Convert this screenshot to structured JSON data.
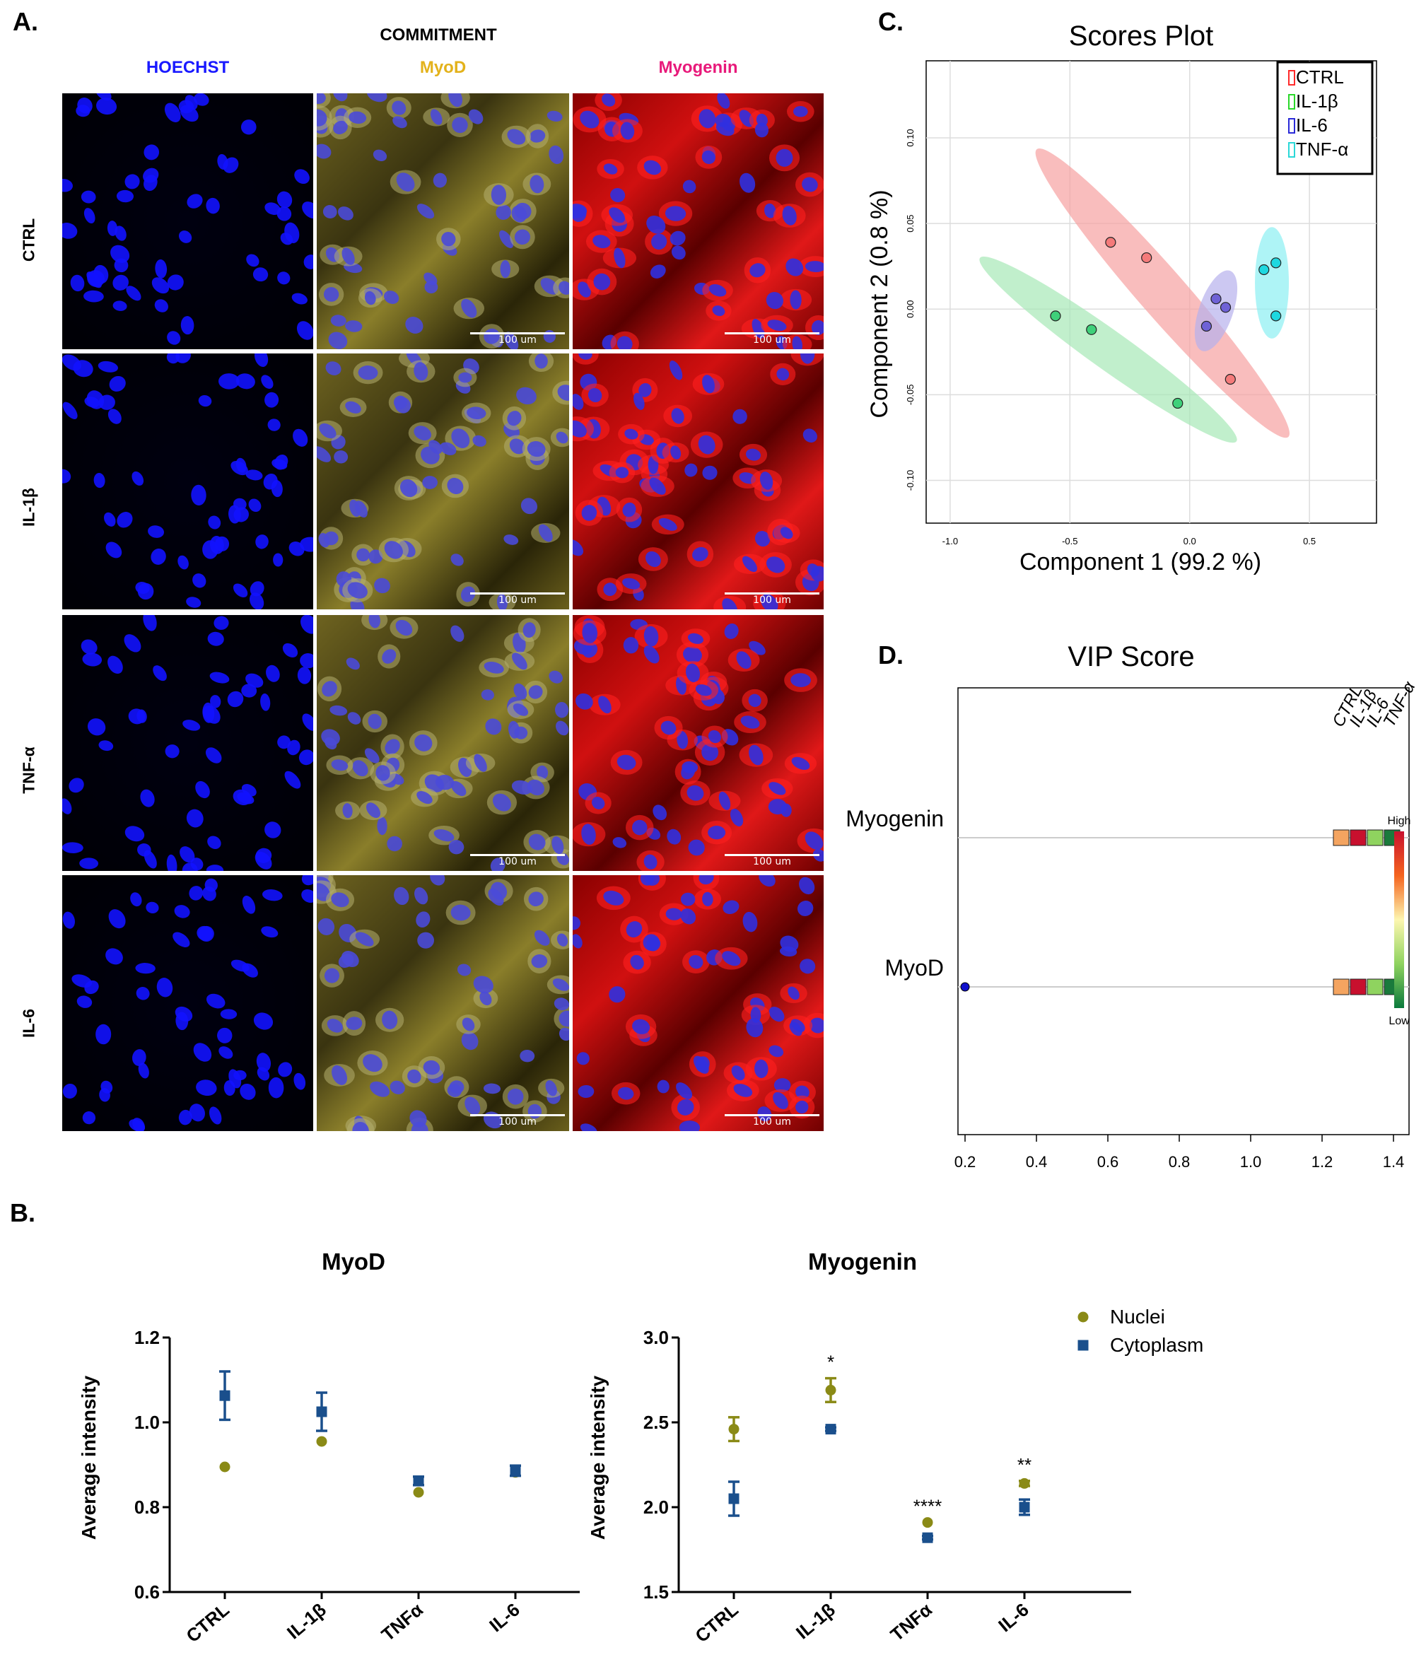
{
  "panel_a": {
    "label": "A.",
    "super_header": "COMMITMENT",
    "channels": [
      {
        "name": "HOECHST",
        "color": "#1a1aff"
      },
      {
        "name": "MyoD",
        "color": "#e3b21b"
      },
      {
        "name": "Myogenin",
        "color": "#e8197a"
      }
    ],
    "rows": [
      "CTRL",
      "IL-1β",
      "TNF-α",
      "IL-6"
    ],
    "scale_labels": [
      [
        "100 um",
        "100 um"
      ],
      [
        "100 um",
        "100 um"
      ],
      [
        "100 um",
        "100 um"
      ],
      [
        "100 um",
        "100 um"
      ]
    ]
  },
  "panel_b_label": "B.",
  "panel_c_label": "C.",
  "panel_d_label": "D.",
  "chart_data": [
    {
      "id": "myod",
      "type": "scatter",
      "title": "MyoD",
      "ylabel": "Average intensity",
      "categories": [
        "CTRL",
        "IL-1β",
        "TNFα",
        "IL-6"
      ],
      "ylim": [
        0.6,
        1.2
      ],
      "yticks": [
        "0.6",
        "0.8",
        "1.0",
        "1.2"
      ],
      "series": [
        {
          "name": "Nuclei",
          "marker": "circle",
          "color": "#8a8a16",
          "values": [
            0.895,
            0.955,
            0.835,
            0.882
          ],
          "err": [
            0,
            0,
            0,
            0
          ]
        },
        {
          "name": "Cytoplasm",
          "marker": "square",
          "color": "#1a4f8c",
          "values": [
            1.063,
            1.025,
            0.862,
            0.886
          ],
          "err": [
            0.057,
            0.045,
            0.01,
            0.012
          ]
        }
      ],
      "annotations": [
        "",
        "",
        "",
        ""
      ]
    },
    {
      "id": "myogenin",
      "type": "scatter",
      "title": "Myogenin",
      "ylabel": "Average intensity",
      "categories": [
        "CTRL",
        "IL-1β",
        "TNFα",
        "IL-6"
      ],
      "ylim": [
        1.5,
        3.0
      ],
      "yticks": [
        "1.5",
        "2.0",
        "2.5",
        "3.0"
      ],
      "series": [
        {
          "name": "Nuclei",
          "marker": "circle",
          "color": "#8a8a16",
          "values": [
            2.46,
            2.69,
            1.91,
            2.14
          ],
          "err": [
            0.07,
            0.07,
            0,
            0.015
          ]
        },
        {
          "name": "Cytoplasm",
          "marker": "square",
          "color": "#1a4f8c",
          "values": [
            2.05,
            2.46,
            1.82,
            2.0
          ],
          "err": [
            0.1,
            0.01,
            0.01,
            0.045
          ]
        }
      ],
      "annotations": [
        "",
        "*",
        "****",
        "**"
      ],
      "legend": [
        "Nuclei",
        "Cytoplasm"
      ]
    },
    {
      "id": "scores",
      "type": "scatter",
      "title": "Scores Plot",
      "xlabel": "Component 1 (99.2 %)",
      "ylabel": "Component 2 (0.8 %)",
      "xlim": [
        -1.0,
        0.5
      ],
      "ylim": [
        -0.1,
        0.1
      ],
      "xticks": [
        "-1.0",
        "-0.5",
        "0.0",
        "0.5"
      ],
      "yticks": [
        "-0.10",
        "-0.05",
        "0.00",
        "0.05",
        "0.10"
      ],
      "legend_position": "top-right",
      "series": [
        {
          "name": "CTRL",
          "color": "#f47a7a",
          "ellipse": "#f7a1a1",
          "points": [
            [
              -0.33,
              0.039
            ],
            [
              -0.18,
              0.03
            ],
            [
              0.17,
              -0.041
            ]
          ]
        },
        {
          "name": "IL-1β",
          "color": "#3fd07a",
          "ellipse": "#a6e8b6",
          "points": [
            [
              -0.56,
              -0.004
            ],
            [
              -0.41,
              -0.012
            ],
            [
              -0.05,
              -0.055
            ]
          ]
        },
        {
          "name": "IL-6",
          "color": "#6f62d6",
          "ellipse": "#b7b1ec",
          "points": [
            [
              0.07,
              -0.01
            ],
            [
              0.11,
              0.006
            ],
            [
              0.15,
              0.001
            ]
          ]
        },
        {
          "name": "TNF-α",
          "color": "#1ed8e0",
          "ellipse": "#8cf0f2",
          "points": [
            [
              0.31,
              0.023
            ],
            [
              0.36,
              0.027
            ],
            [
              0.36,
              -0.004
            ]
          ]
        }
      ],
      "legend_marker_colors": [
        "#ff2a2a",
        "#2ad82a",
        "#2a2ad8",
        "#2ad8d8"
      ]
    },
    {
      "id": "vip",
      "type": "scatter",
      "title": "VIP Score",
      "xlim": [
        0.2,
        1.4
      ],
      "xticks": [
        "0.2",
        "0.4",
        "0.6",
        "0.8",
        "1.0",
        "1.2",
        "1.4"
      ],
      "features": [
        "Myogenin",
        "MyoD"
      ],
      "values": [
        1.4,
        0.2
      ],
      "heat_columns": [
        "CTRL",
        "IL-1β",
        "IL-6",
        "TNF-α"
      ],
      "heat_colors": [
        [
          "#f4a460",
          "#c8102e",
          "#8fd35f",
          "#1a7a3c"
        ],
        [
          "#f4a460",
          "#c8102e",
          "#8fd35f",
          "#1a7a3c"
        ]
      ],
      "colorbar_labels": [
        "High",
        "Low"
      ]
    }
  ]
}
